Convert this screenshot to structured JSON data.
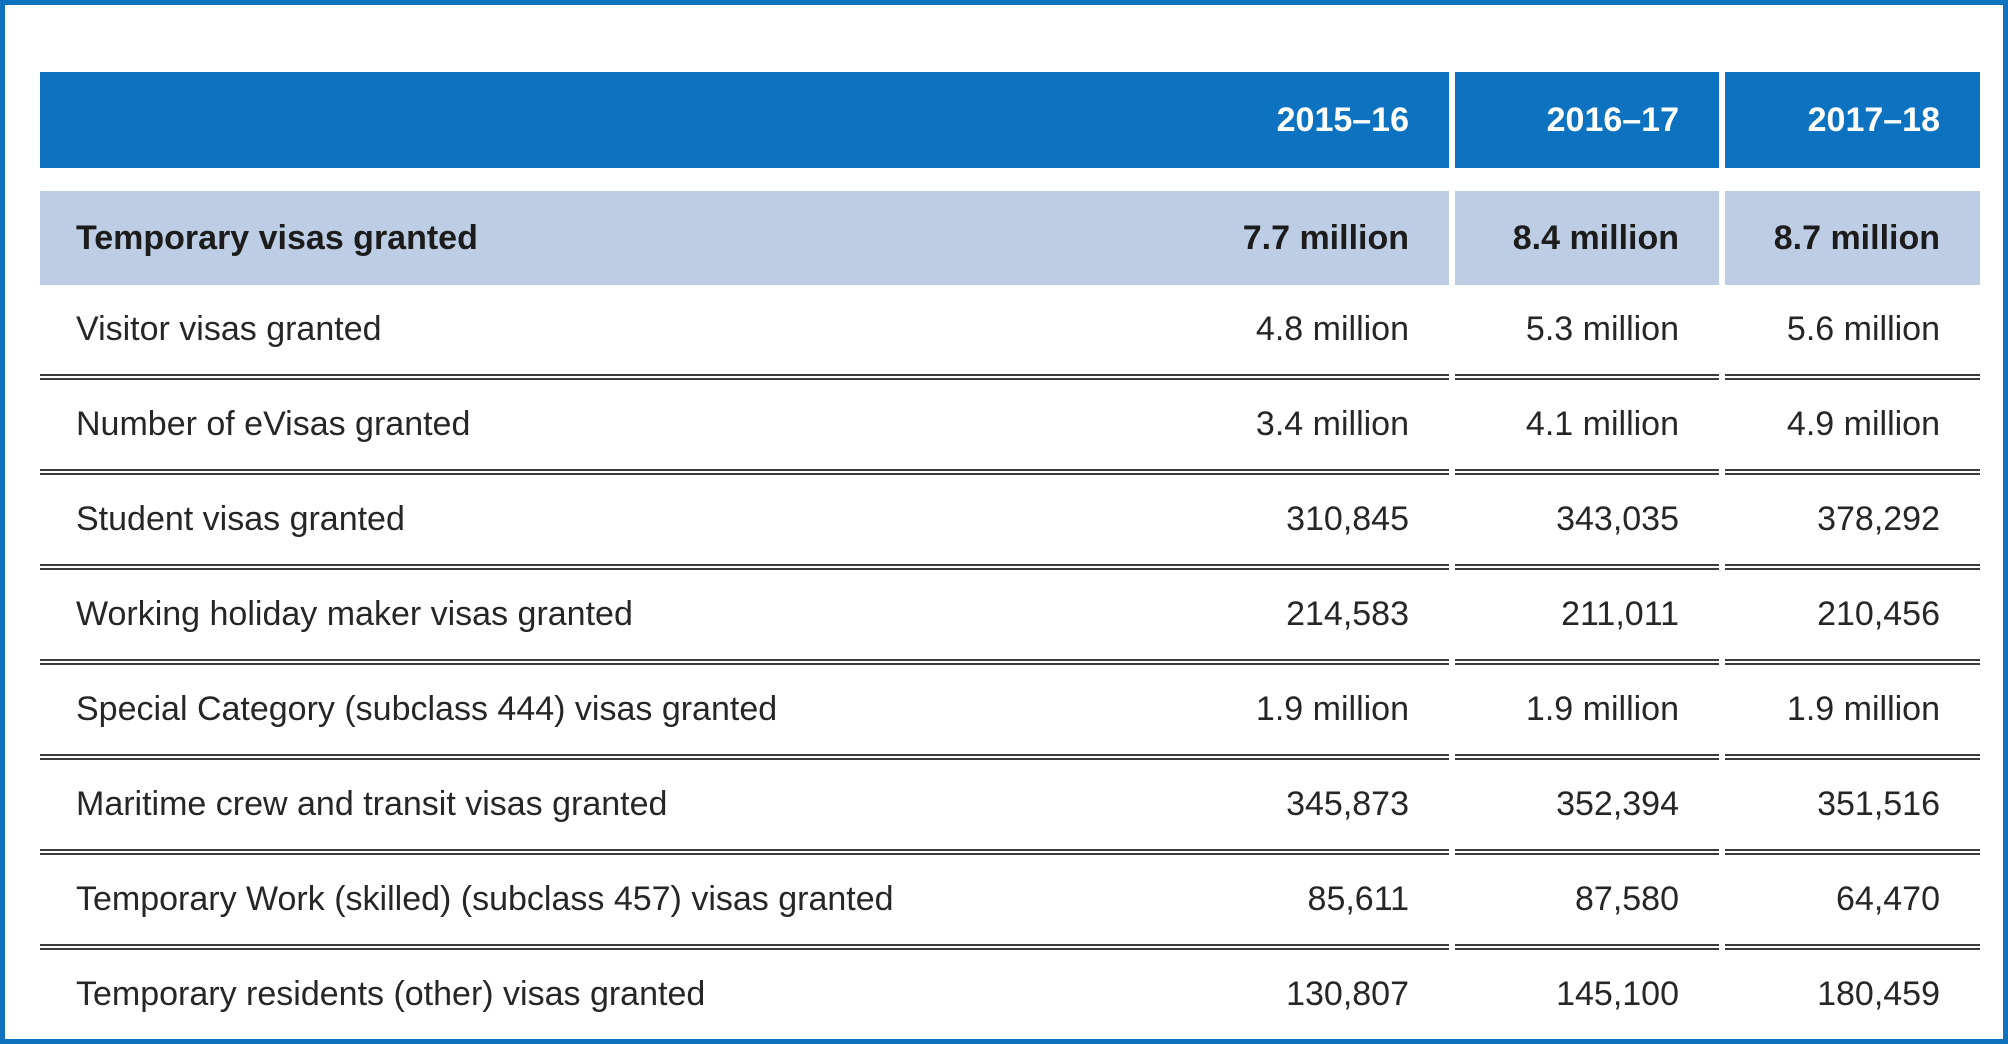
{
  "colors": {
    "frame_border": "#0e72bf",
    "header_bg": "#0d73c0",
    "header_text": "#ffffff",
    "highlight_row_bg": "#bccde4",
    "row_rule": "#3b3b3b",
    "body_text": "#262626"
  },
  "table": {
    "type": "table",
    "header": {
      "label": "",
      "columns": [
        "2015–16",
        "2016–17",
        "2017–18"
      ]
    },
    "highlight_row": {
      "label": "Temporary visas granted",
      "values": [
        "7.7 million",
        "8.4 million",
        "8.7 million"
      ]
    },
    "rows": [
      {
        "label": "Visitor visas granted",
        "values": [
          "4.8 million",
          "5.3 million",
          "5.6 million"
        ]
      },
      {
        "label": "Number of eVisas granted",
        "values": [
          "3.4 million",
          "4.1 million",
          "4.9 million"
        ]
      },
      {
        "label": "Student visas granted",
        "values": [
          "310,845",
          "343,035",
          "378,292"
        ]
      },
      {
        "label": "Working holiday maker visas granted",
        "values": [
          "214,583",
          "211,011",
          "210,456"
        ]
      },
      {
        "label": "Special Category (subclass 444) visas granted",
        "values": [
          "1.9 million",
          "1.9 million",
          "1.9 million"
        ]
      },
      {
        "label": "Maritime crew and transit visas granted",
        "values": [
          "345,873",
          "352,394",
          "351,516"
        ]
      },
      {
        "label": "Temporary Work (skilled) (subclass 457) visas granted",
        "values": [
          "85,611",
          "87,580",
          "64,470"
        ]
      },
      {
        "label": "Temporary residents (other) visas granted",
        "values": [
          "130,807",
          "145,100",
          "180,459"
        ]
      }
    ]
  }
}
